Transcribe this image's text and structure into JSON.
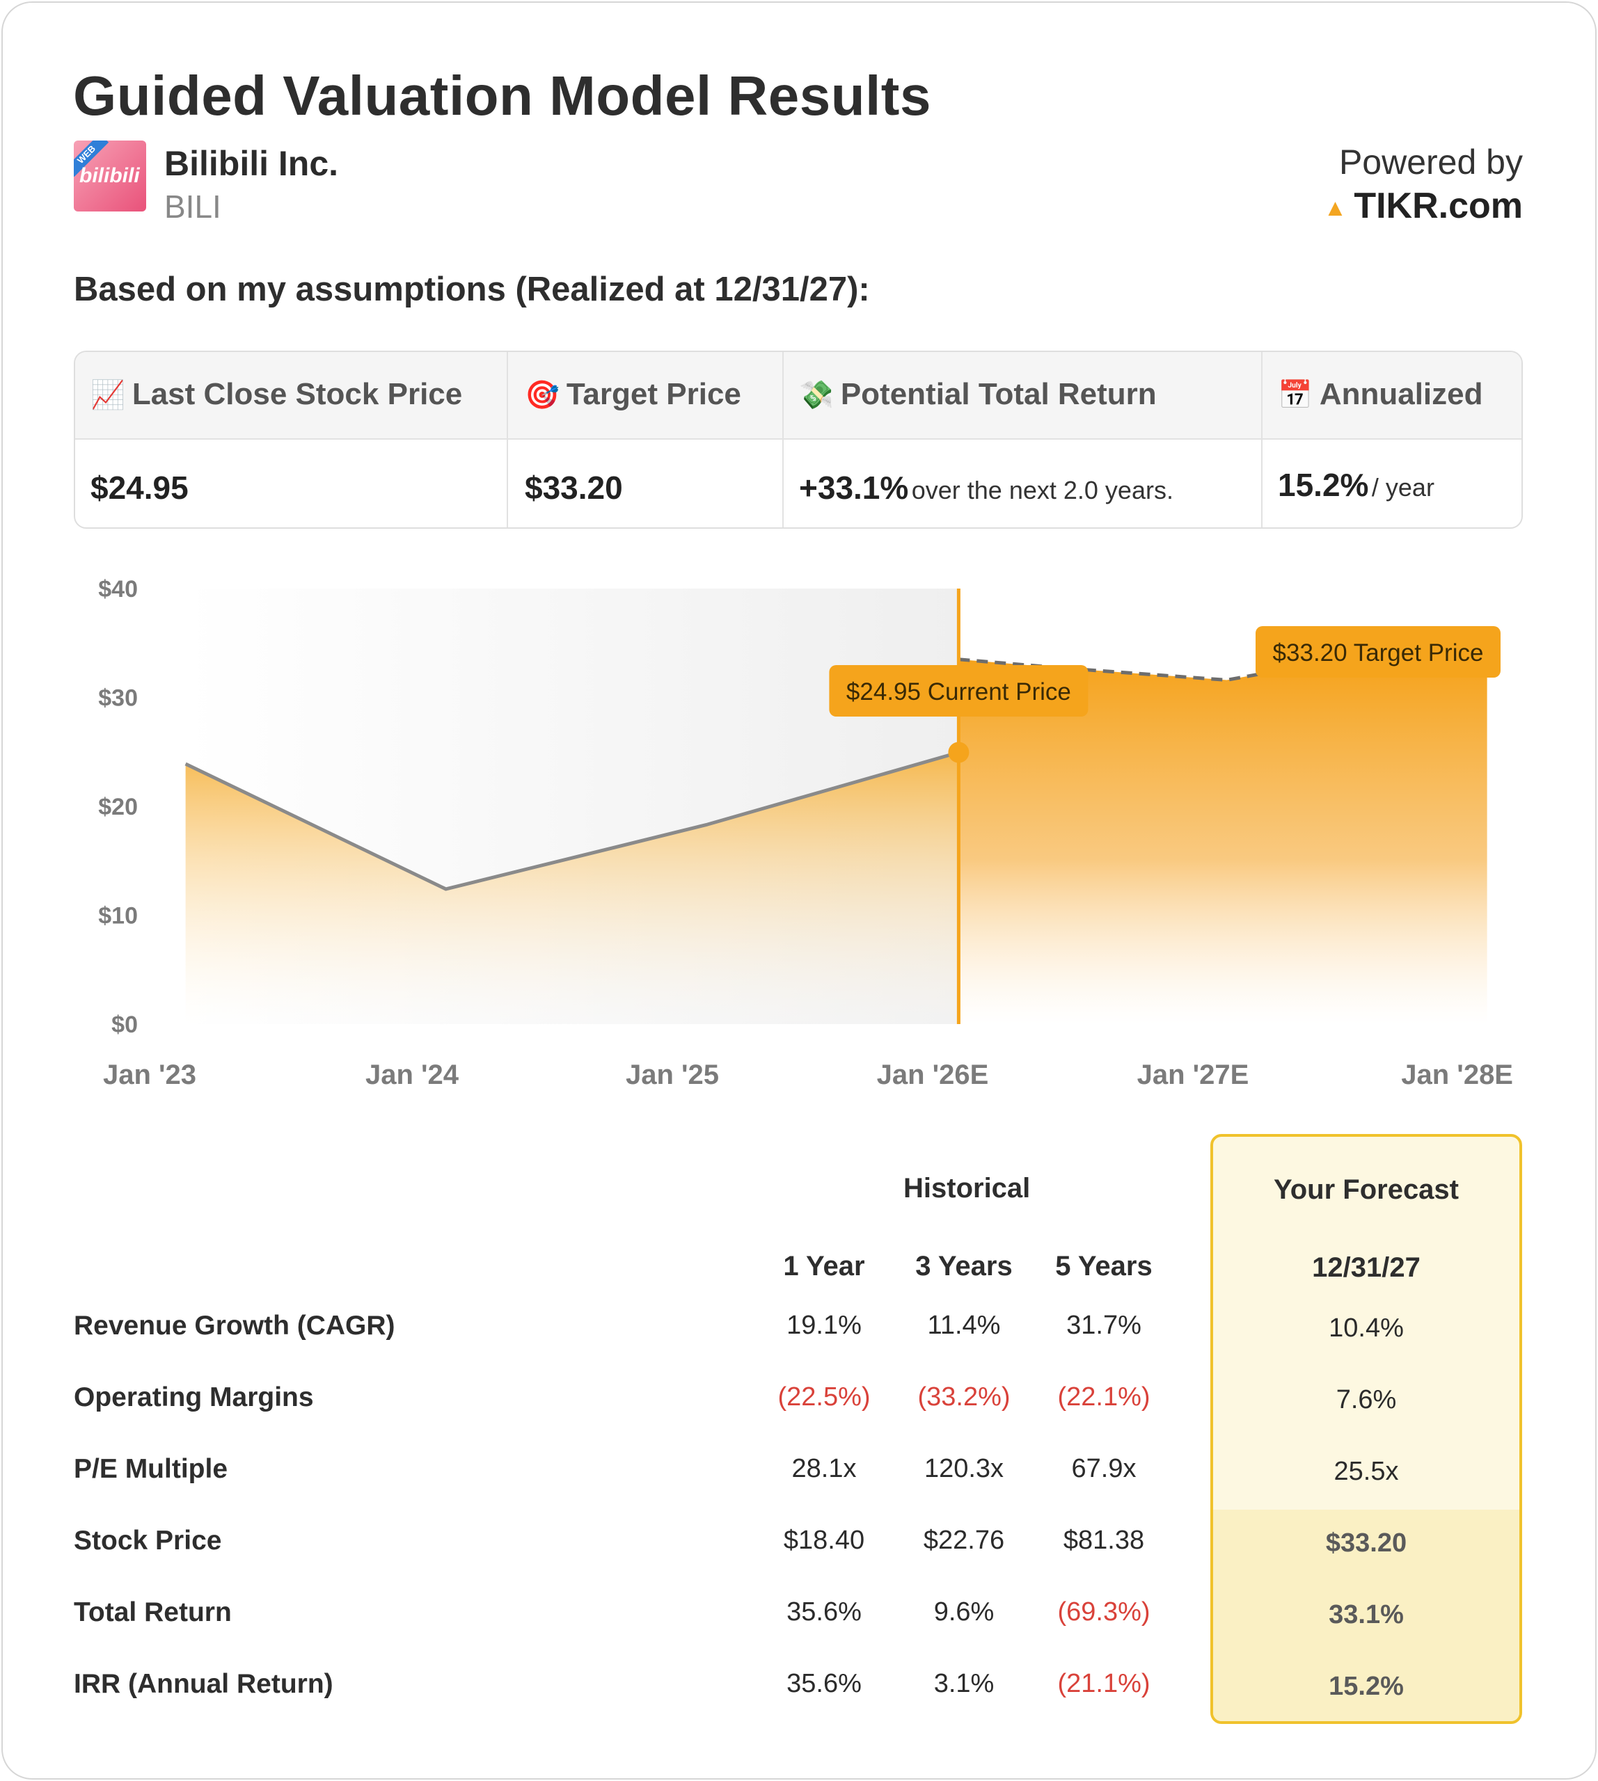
{
  "header": {
    "title": "Guided Valuation Model Results",
    "company": "Bilibili Inc.",
    "ticker": "BILI",
    "logo_text": "bilibili",
    "logo_badge": "WEB",
    "powered_by": "Powered by",
    "brand": "TIKR.com",
    "assumption_line": "Based on my assumptions (Realized at 12/31/27):"
  },
  "summary": {
    "last_close_label": "Last Close Stock Price",
    "target_label": "Target Price",
    "return_label": "Potential Total Return",
    "annualized_label": "Annualized",
    "last_close_value": "$24.95",
    "target_value": "$33.20",
    "return_value": "+33.1%",
    "return_suffix": "over the next 2.0 years.",
    "annualized_value": "15.2%",
    "annualized_suffix": "/ year",
    "icons": [
      "chart-increasing",
      "direct-hit",
      "money-with-wings",
      "calendar"
    ]
  },
  "chart_data": {
    "type": "area",
    "title": "",
    "xlabel": "",
    "ylabel": "",
    "ylim": [
      0,
      40
    ],
    "yticks": [
      "$40",
      "$30",
      "$20",
      "$10",
      "$0"
    ],
    "ytick_values": [
      40,
      30,
      20,
      10,
      0
    ],
    "x_tick_labels": [
      "Jan '23",
      "Jan '24",
      "Jan '25",
      "Jan '26E",
      "Jan '27E",
      "Jan '28E"
    ],
    "x_range": [
      2023,
      2028
    ],
    "historical": {
      "x": [
        2023.13,
        2024.13,
        2025.13,
        2026.1
      ],
      "y": [
        23.9,
        12.4,
        18.3,
        24.95
      ]
    },
    "forecast": {
      "x": [
        2026.1,
        2026.5,
        2027.13,
        2027.5,
        2028.13
      ],
      "y": [
        33.5,
        32.7,
        31.6,
        33.2,
        33.2
      ]
    },
    "current_price_label": "$24.95 Current Price",
    "target_price_label": "$33.20 Target Price",
    "colors": {
      "accent": "#f5a41c",
      "line": "#8a8a8a",
      "shade": "#f2f2f2"
    }
  },
  "table": {
    "historical_label": "Historical",
    "forecast_label": "Your Forecast",
    "forecast_date": "12/31/27",
    "columns": [
      "1 Year",
      "3 Years",
      "5 Years"
    ],
    "rows": [
      {
        "label": "Revenue Growth (CAGR)",
        "values": [
          "19.1%",
          "11.4%",
          "31.7%"
        ],
        "forecast": "10.4%"
      },
      {
        "label": "Operating Margins",
        "values": [
          "(22.5%)",
          "(33.2%)",
          "(22.1%)"
        ],
        "forecast": "7.6%"
      },
      {
        "label": "P/E Multiple",
        "values": [
          "28.1x",
          "120.3x",
          "67.9x"
        ],
        "forecast": "25.5x"
      },
      {
        "label": "Stock Price",
        "values": [
          "$18.40",
          "$22.76",
          "$81.38"
        ],
        "forecast": "$33.20"
      },
      {
        "label": "Total Return",
        "values": [
          "35.6%",
          "9.6%",
          "(69.3%)"
        ],
        "forecast": "33.1%"
      },
      {
        "label": "IRR (Annual Return)",
        "values": [
          "35.6%",
          "3.1%",
          "(21.1%)"
        ],
        "forecast": "15.2%"
      }
    ]
  }
}
